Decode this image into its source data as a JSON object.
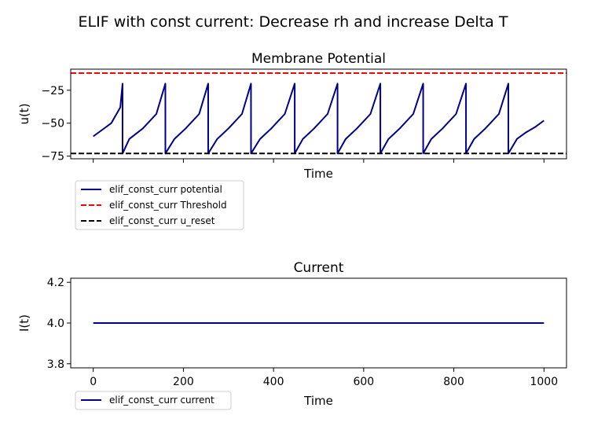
{
  "figure": {
    "suptitle": "ELIF with const current: Decrease rh and increase Delta T"
  },
  "chart_data": [
    {
      "type": "line",
      "title": "Membrane Potential",
      "xlabel": "Time",
      "ylabel": "u(t)",
      "xlim": [
        -50,
        1050
      ],
      "ylim": [
        -77,
        -9
      ],
      "x_ticks": [
        0,
        200,
        400,
        600,
        800,
        1000
      ],
      "x_tick_labels_shown": false,
      "y_ticks": [
        -25,
        -50,
        -75
      ],
      "y_tick_labels": [
        "−25",
        "−50",
        "−75"
      ],
      "grid": false,
      "legend_placement": "below-left",
      "spike_times": [
        65,
        160,
        255,
        350,
        447,
        542,
        637,
        732,
        827,
        921
      ],
      "series": [
        {
          "name": "elif_const_curr potential",
          "color": "#00008b",
          "style": "solid",
          "x": [
            0,
            20,
            40,
            60,
            65,
            65.01,
            80,
            110,
            140,
            160,
            160.01,
            180,
            205,
            235,
            255,
            255.01,
            275,
            300,
            330,
            350,
            350.01,
            370,
            395,
            425,
            447,
            447.01,
            465,
            490,
            520,
            542,
            542.01,
            560,
            585,
            615,
            637,
            637.01,
            655,
            680,
            710,
            732,
            732.01,
            750,
            775,
            805,
            827,
            827.01,
            845,
            870,
            900,
            921,
            921.01,
            940,
            960,
            980,
            1000
          ],
          "y": [
            -60,
            -55,
            -50,
            -38,
            -20,
            -73,
            -62,
            -54,
            -43,
            -20,
            -73,
            -62,
            -54,
            -43,
            -20,
            -73,
            -62,
            -54,
            -43,
            -20,
            -73,
            -62,
            -54,
            -43,
            -20,
            -73,
            -62,
            -54,
            -43,
            -20,
            -73,
            -62,
            -54,
            -43,
            -20,
            -73,
            -62,
            -54,
            -43,
            -20,
            -73,
            -62,
            -54,
            -43,
            -20,
            -73,
            -62,
            -54,
            -43,
            -20,
            -73,
            -62,
            -57,
            -53,
            -48
          ]
        },
        {
          "name": "elif_const_curr Threshold",
          "color": "#ff0000",
          "style": "dashed",
          "hline": -12
        },
        {
          "name": "elif_const_curr u_reset",
          "color": "#000000",
          "style": "dashed",
          "hline": -73
        }
      ]
    },
    {
      "type": "line",
      "title": "Current",
      "xlabel": "Time",
      "ylabel": "I(t)",
      "xlim": [
        -50,
        1050
      ],
      "ylim": [
        3.78,
        4.22
      ],
      "x_ticks": [
        0,
        200,
        400,
        600,
        800,
        1000
      ],
      "x_tick_labels": [
        "0",
        "200",
        "400",
        "600",
        "800",
        "1000"
      ],
      "y_ticks": [
        3.8,
        4.0,
        4.2
      ],
      "y_tick_labels": [
        "3.8",
        "4.0",
        "4.2"
      ],
      "grid": false,
      "legend_placement": "below-left",
      "series": [
        {
          "name": "elif_const_curr current",
          "color": "#00008b",
          "style": "solid",
          "x": [
            0,
            1000
          ],
          "y": [
            4.0,
            4.0
          ]
        }
      ]
    }
  ]
}
